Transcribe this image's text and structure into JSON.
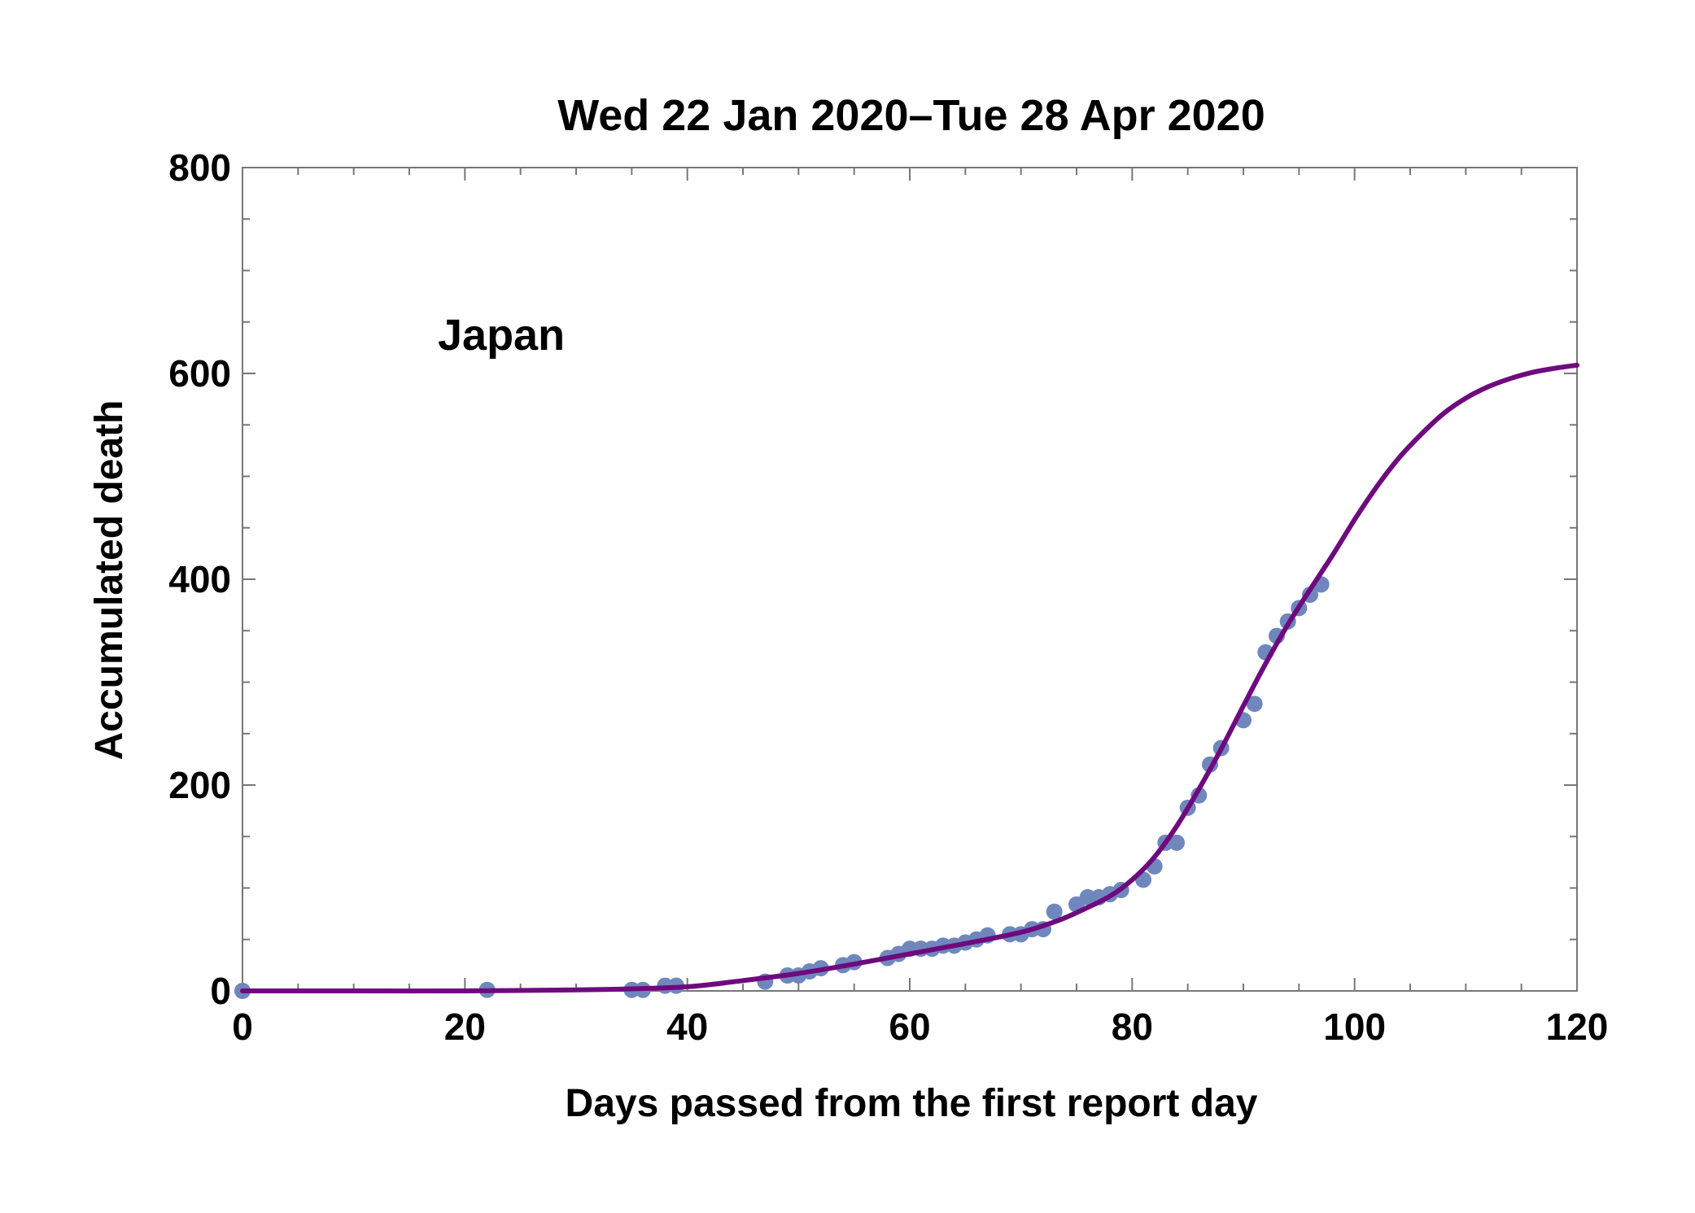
{
  "chart_data": {
    "type": "scatter",
    "title": "Wed 22 Jan 2020–Tue 28 Apr 2020",
    "xlabel": "Days passed from the first report day",
    "ylabel": "Accumulated death",
    "xlim": [
      0,
      120
    ],
    "ylim": [
      0,
      800
    ],
    "x_ticks": [
      0,
      20,
      40,
      60,
      80,
      100,
      120
    ],
    "y_ticks": [
      0,
      200,
      400,
      600,
      800
    ],
    "grid": false,
    "annotation": "Japan",
    "colors": {
      "points": "#6f87bd",
      "fit": "#6e0a7e",
      "frame": "#777777"
    },
    "series": [
      {
        "type": "scatter",
        "x": [
          0,
          22,
          35,
          36,
          38,
          39,
          47,
          49,
          50,
          51,
          52,
          54,
          55,
          58,
          59,
          60,
          61,
          62,
          63,
          64,
          65,
          66,
          67,
          69,
          70,
          71,
          72,
          73,
          75,
          76,
          77,
          78,
          79,
          81,
          82,
          83,
          84,
          85,
          86,
          87,
          88,
          90,
          91,
          92,
          93,
          94,
          95,
          96,
          97
        ],
        "y": [
          0,
          1,
          1,
          1,
          5,
          5,
          9,
          15,
          15,
          19,
          22,
          25,
          28,
          32,
          36,
          41,
          41,
          41,
          44,
          44,
          47,
          50,
          54,
          55,
          55,
          60,
          60,
          77,
          84,
          91,
          91,
          94,
          98,
          108,
          121,
          144,
          144,
          178,
          190,
          220,
          236,
          263,
          279,
          329,
          345,
          359,
          372,
          385,
          395
        ]
      },
      {
        "type": "line",
        "x": [
          0,
          10,
          20,
          30,
          35,
          40,
          45,
          50,
          55,
          60,
          65,
          70,
          73,
          75,
          78,
          80,
          82,
          84,
          86,
          88,
          90,
          92,
          94,
          96,
          98,
          100,
          102,
          104,
          106,
          108,
          110,
          112,
          114,
          116,
          118,
          120
        ],
        "y": [
          0,
          0,
          0,
          1,
          2,
          4,
          10,
          17,
          26,
          36,
          46,
          57,
          67,
          76,
          92,
          108,
          130,
          160,
          196,
          235,
          277,
          318,
          356,
          390,
          423,
          458,
          490,
          518,
          541,
          561,
          576,
          587,
          595,
          601,
          605,
          608
        ]
      }
    ]
  }
}
